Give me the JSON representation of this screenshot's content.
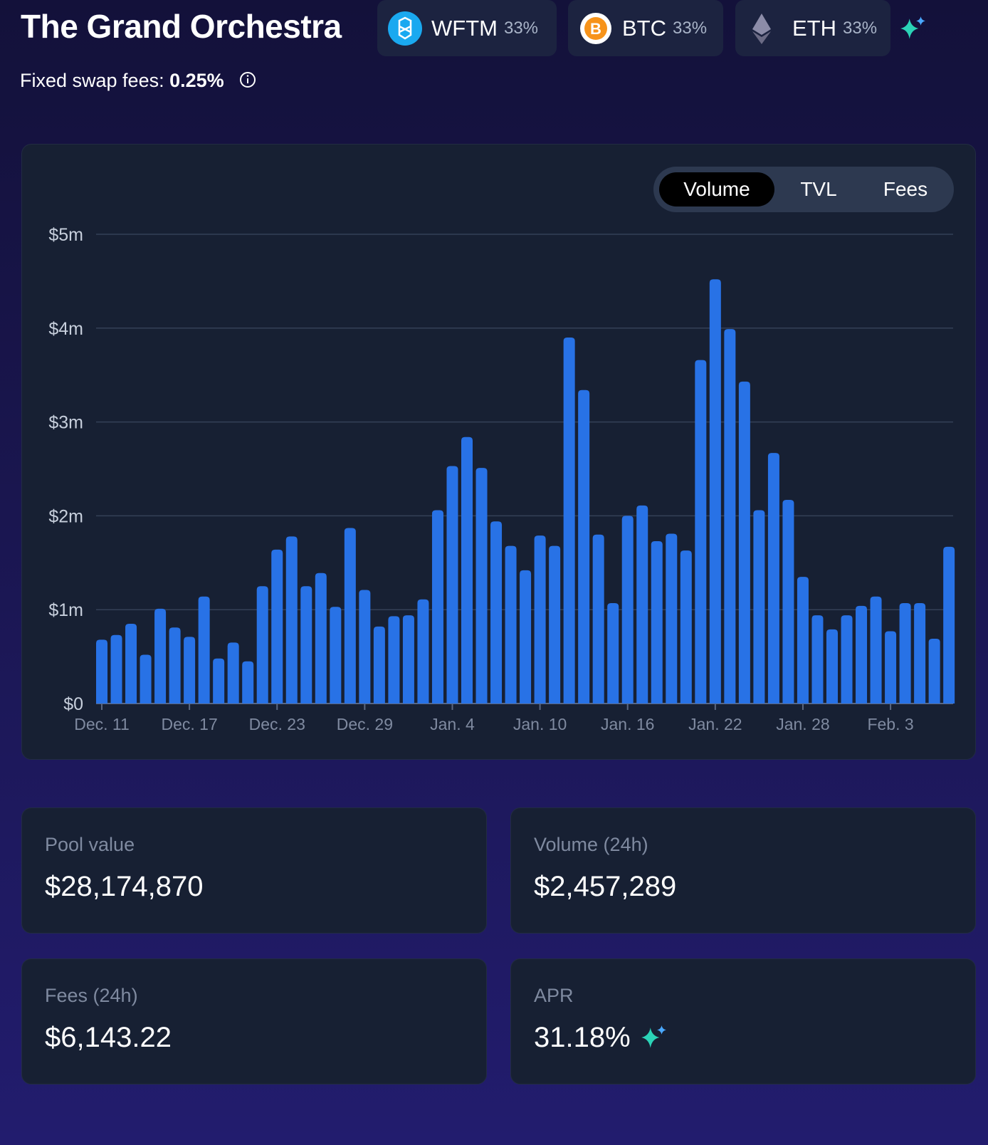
{
  "header": {
    "title": "The Grand Orchestra",
    "tokens": [
      {
        "name": "WFTM",
        "weight": "33%"
      },
      {
        "name": "BTC",
        "weight": "33%"
      },
      {
        "name": "ETH",
        "weight": "33%"
      }
    ],
    "fees_label": "Fixed swap fees:",
    "fees_value": "0.25%"
  },
  "tabs": [
    "Volume",
    "TVL",
    "Fees"
  ],
  "chart_data": {
    "type": "bar",
    "color": "#2872e6",
    "grid": true,
    "categories": [
      "Dec. 11",
      null,
      null,
      null,
      null,
      null,
      "Dec. 17",
      null,
      null,
      null,
      null,
      null,
      "Dec. 23",
      null,
      null,
      null,
      null,
      null,
      "Dec. 29",
      null,
      null,
      null,
      null,
      null,
      "Jan. 4",
      null,
      null,
      null,
      null,
      null,
      "Jan. 10",
      null,
      null,
      null,
      null,
      null,
      "Jan. 16",
      null,
      null,
      null,
      null,
      null,
      "Jan. 22",
      null,
      null,
      null,
      null,
      null,
      "Jan. 28",
      null,
      null,
      null,
      null,
      null,
      "Feb. 3",
      null,
      null,
      null,
      null
    ],
    "values": [
      0.68,
      0.73,
      0.85,
      0.52,
      1.01,
      0.81,
      0.71,
      1.14,
      0.48,
      0.65,
      0.45,
      1.25,
      1.64,
      1.78,
      1.25,
      1.39,
      1.03,
      1.87,
      1.21,
      0.82,
      0.93,
      0.94,
      1.11,
      2.06,
      2.53,
      2.84,
      2.51,
      1.94,
      1.68,
      1.42,
      1.79,
      1.68,
      3.9,
      3.34,
      1.8,
      1.07,
      2.0,
      2.11,
      1.73,
      1.81,
      1.63,
      3.66,
      4.52,
      3.99,
      3.43,
      2.06,
      2.67,
      2.17,
      1.35,
      0.94,
      0.79,
      0.94,
      1.04,
      1.14,
      0.77,
      1.07,
      1.07,
      0.69,
      1.67
    ],
    "ylim": [
      0,
      5
    ],
    "yticks": [
      {
        "value": 0,
        "label": "$0"
      },
      {
        "value": 1,
        "label": "$1m"
      },
      {
        "value": 2,
        "label": "$2m"
      },
      {
        "value": 3,
        "label": "$3m"
      },
      {
        "value": 4,
        "label": "$4m"
      },
      {
        "value": 5,
        "label": "$5m"
      }
    ]
  },
  "stats": [
    {
      "label": "Pool value",
      "value": "$28,174,870"
    },
    {
      "label": "Volume (24h)",
      "value": "$2,457,289"
    },
    {
      "label": "Fees (24h)",
      "value": "$6,143.22"
    },
    {
      "label": "APR",
      "value": "31.18%"
    }
  ]
}
